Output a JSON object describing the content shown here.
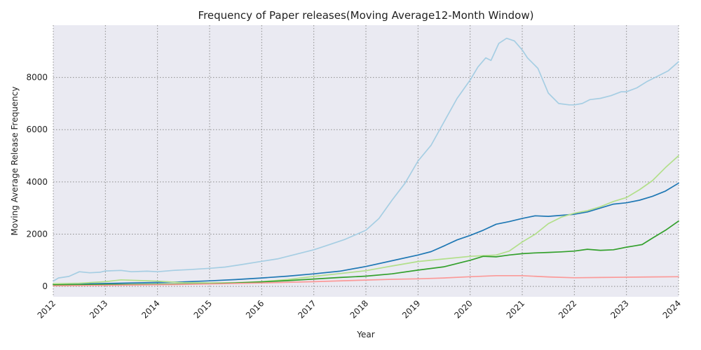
{
  "chart_data": {
    "type": "line",
    "title": "Frequency of Paper releases(Moving Average12-Month Window)",
    "xlabel": "Year",
    "ylabel": "Moving Average Release Frequency",
    "xlim": [
      2012,
      2024
    ],
    "ylim": [
      -400,
      10000
    ],
    "x_ticks": [
      "2012",
      "2013",
      "2014",
      "2015",
      "2016",
      "2017",
      "2018",
      "2019",
      "2020",
      "2021",
      "2022",
      "2023",
      "2024"
    ],
    "x_tick_values": [
      2012,
      2013,
      2014,
      2015,
      2016,
      2017,
      2018,
      2019,
      2020,
      2021,
      2022,
      2023,
      2024
    ],
    "y_ticks": [
      "0",
      "2000",
      "4000",
      "6000",
      "8000"
    ],
    "y_tick_values": [
      0,
      2000,
      4000,
      6000,
      8000
    ],
    "grid": true,
    "legend": "none",
    "background": "#eaeaf2",
    "series": [
      {
        "color": "#a6cee3",
        "x": [
          2012.0,
          2012.1,
          2012.3,
          2012.5,
          2012.7,
          2012.9,
          2013.0,
          2013.3,
          2013.5,
          2013.8,
          2014.0,
          2014.3,
          2014.6,
          2015.0,
          2015.3,
          2015.6,
          2016.0,
          2016.3,
          2016.6,
          2017.0,
          2017.3,
          2017.6,
          2018.0,
          2018.25,
          2018.5,
          2018.75,
          2019.0,
          2019.25,
          2019.5,
          2019.75,
          2020.0,
          2020.15,
          2020.3,
          2020.4,
          2020.55,
          2020.7,
          2020.85,
          2021.0,
          2021.1,
          2021.3,
          2021.5,
          2021.7,
          2021.9,
          2022.0,
          2022.15,
          2022.3,
          2022.5,
          2022.7,
          2022.9,
          2023.0,
          2023.2,
          2023.4,
          2023.6,
          2023.8,
          2024.0
        ],
        "y": [
          200,
          320,
          380,
          560,
          520,
          540,
          590,
          610,
          560,
          580,
          560,
          610,
          640,
          690,
          740,
          830,
          960,
          1050,
          1200,
          1400,
          1600,
          1800,
          2150,
          2600,
          3300,
          3950,
          4800,
          5400,
          6300,
          7200,
          7900,
          8400,
          8750,
          8650,
          9300,
          9500,
          9400,
          9050,
          8750,
          8350,
          7400,
          7000,
          6950,
          6950,
          7000,
          7150,
          7200,
          7300,
          7450,
          7450,
          7600,
          7850,
          8050,
          8250,
          8600
        ]
      },
      {
        "color": "#1f78b4",
        "x": [
          2012.0,
          2012.5,
          2013.0,
          2013.5,
          2014.0,
          2014.5,
          2015.0,
          2015.5,
          2016.0,
          2016.5,
          2017.0,
          2017.5,
          2018.0,
          2018.5,
          2019.0,
          2019.25,
          2019.5,
          2019.75,
          2020.0,
          2020.25,
          2020.5,
          2020.75,
          2021.0,
          2021.25,
          2021.5,
          2021.75,
          2022.0,
          2022.25,
          2022.5,
          2022.75,
          2023.0,
          2023.25,
          2023.5,
          2023.75,
          2024.0
        ],
        "y": [
          80,
          90,
          110,
          130,
          150,
          170,
          210,
          260,
          320,
          390,
          480,
          580,
          760,
          980,
          1200,
          1330,
          1550,
          1780,
          1950,
          2150,
          2380,
          2480,
          2600,
          2700,
          2680,
          2720,
          2760,
          2850,
          3000,
          3150,
          3200,
          3300,
          3450,
          3650,
          3950
        ]
      },
      {
        "color": "#b2df8a",
        "x": [
          2012.0,
          2012.5,
          2013.0,
          2013.3,
          2013.7,
          2014.0,
          2014.5,
          2015.0,
          2015.5,
          2016.0,
          2016.5,
          2017.0,
          2017.5,
          2018.0,
          2018.5,
          2019.0,
          2019.5,
          2020.0,
          2020.5,
          2020.75,
          2021.0,
          2021.25,
          2021.5,
          2021.75,
          2022.0,
          2022.25,
          2022.5,
          2022.75,
          2023.0,
          2023.25,
          2023.5,
          2023.75,
          2024.0
        ],
        "y": [
          100,
          120,
          180,
          250,
          220,
          200,
          140,
          130,
          140,
          180,
          260,
          380,
          490,
          600,
          780,
          950,
          1050,
          1150,
          1200,
          1350,
          1700,
          2000,
          2400,
          2650,
          2800,
          2900,
          3050,
          3250,
          3400,
          3700,
          4050,
          4550,
          5000
        ]
      },
      {
        "color": "#33a02c",
        "x": [
          2012.0,
          2012.5,
          2013.0,
          2013.5,
          2014.0,
          2014.5,
          2015.0,
          2015.5,
          2016.0,
          2016.5,
          2017.0,
          2017.5,
          2018.0,
          2018.5,
          2019.0,
          2019.5,
          2020.0,
          2020.25,
          2020.5,
          2020.75,
          2021.0,
          2021.25,
          2021.5,
          2021.75,
          2022.0,
          2022.25,
          2022.5,
          2022.75,
          2023.0,
          2023.15,
          2023.3,
          2023.5,
          2023.75,
          2024.0
        ],
        "y": [
          60,
          65,
          70,
          75,
          80,
          90,
          100,
          130,
          170,
          220,
          280,
          340,
          390,
          480,
          620,
          750,
          1000,
          1150,
          1130,
          1200,
          1250,
          1280,
          1300,
          1320,
          1350,
          1420,
          1380,
          1400,
          1500,
          1550,
          1600,
          1850,
          2150,
          2500
        ]
      },
      {
        "color": "#fb9a99",
        "x": [
          2012.0,
          2013.0,
          2014.0,
          2015.0,
          2016.0,
          2017.0,
          2018.0,
          2018.5,
          2019.0,
          2019.5,
          2020.0,
          2020.5,
          2021.0,
          2021.5,
          2022.0,
          2022.5,
          2023.0,
          2023.5,
          2024.0
        ],
        "y": [
          20,
          40,
          60,
          90,
          130,
          180,
          240,
          270,
          290,
          320,
          370,
          410,
          410,
          360,
          330,
          340,
          350,
          360,
          370
        ]
      }
    ]
  }
}
